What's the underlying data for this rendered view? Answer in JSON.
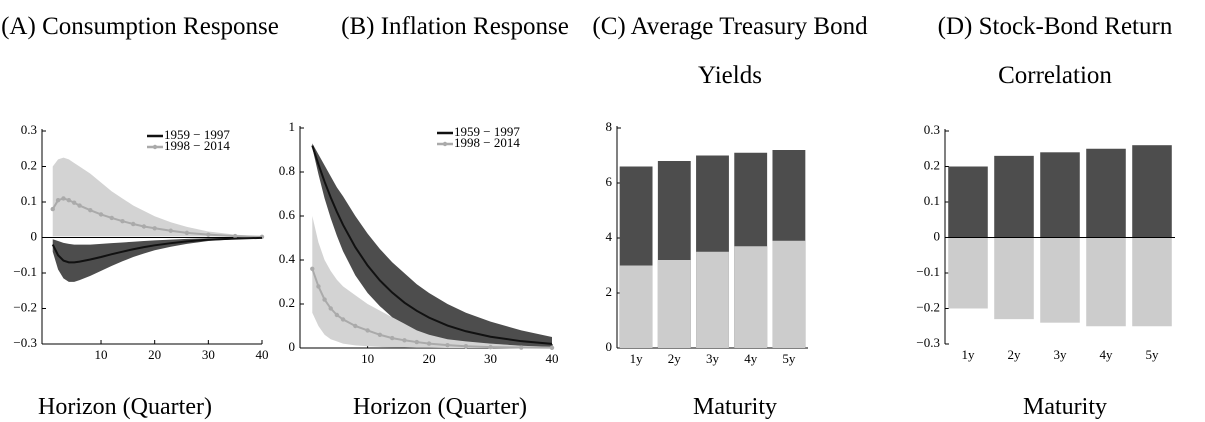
{
  "chart_data": [
    {
      "type": "line",
      "title": "(A) Consumption Response",
      "xlabel": "Horizon (Quarter)",
      "x": [
        1,
        2,
        3,
        4,
        5,
        6,
        8,
        10,
        12,
        14,
        16,
        18,
        20,
        23,
        26,
        30,
        35,
        40
      ],
      "xlim": [
        -1,
        40
      ],
      "xticks": [
        10,
        20,
        30,
        40
      ],
      "ylim": [
        -0.3,
        0.3
      ],
      "yticks": [
        {
          "value": -0.3,
          "label": "−0.3"
        },
        {
          "value": -0.2,
          "label": "−0.2"
        },
        {
          "value": -0.1,
          "label": "−0.1"
        },
        0,
        0.1,
        0.2,
        0.3
      ],
      "zero_line": true,
      "legend": "upper right",
      "series": [
        {
          "name": "1959 − 1997",
          "color": "#111111",
          "band_color": "#4d4d4d",
          "markers": false,
          "values": [
            -0.02,
            -0.05,
            -0.065,
            -0.07,
            -0.07,
            -0.068,
            -0.062,
            -0.055,
            -0.047,
            -0.04,
            -0.033,
            -0.027,
            -0.022,
            -0.016,
            -0.011,
            -0.006,
            -0.003,
            -0.001
          ],
          "lower": [
            -0.04,
            -0.09,
            -0.115,
            -0.125,
            -0.125,
            -0.12,
            -0.108,
            -0.094,
            -0.08,
            -0.067,
            -0.055,
            -0.045,
            -0.036,
            -0.026,
            -0.018,
            -0.01,
            -0.005,
            -0.002
          ],
          "upper": [
            -0.005,
            -0.01,
            -0.015,
            -0.018,
            -0.02,
            -0.02,
            -0.02,
            -0.018,
            -0.016,
            -0.014,
            -0.012,
            -0.01,
            -0.008,
            -0.006,
            -0.004,
            -0.002,
            -0.001,
            0
          ]
        },
        {
          "name": "1998 − 2014",
          "color": "#aaaaaa",
          "band_color": "#d3d3d3",
          "markers": true,
          "values": [
            0.08,
            0.105,
            0.11,
            0.105,
            0.098,
            0.09,
            0.077,
            0.065,
            0.055,
            0.046,
            0.038,
            0.031,
            0.026,
            0.019,
            0.013,
            0.008,
            0.004,
            0.002
          ],
          "lower": [
            0.003,
            0.003,
            0.003,
            0.003,
            0.003,
            0.003,
            0.003,
            0.003,
            0.003,
            0.003,
            0.003,
            0.003,
            0.003,
            0.003,
            0.003,
            0.003,
            0.002,
            0.001
          ],
          "upper": [
            0.2,
            0.22,
            0.225,
            0.22,
            0.21,
            0.2,
            0.18,
            0.155,
            0.13,
            0.11,
            0.09,
            0.075,
            0.06,
            0.043,
            0.03,
            0.017,
            0.008,
            0.003
          ]
        }
      ]
    },
    {
      "type": "line",
      "title": "(B) Inflation Response",
      "xlabel": "Horizon (Quarter)",
      "x": [
        1,
        2,
        3,
        4,
        5,
        6,
        8,
        10,
        12,
        14,
        16,
        18,
        20,
        23,
        26,
        30,
        35,
        40
      ],
      "xlim": [
        -1,
        40
      ],
      "xticks": [
        10,
        20,
        30,
        40
      ],
      "ylim": [
        0,
        1
      ],
      "yticks": [
        0,
        0.2,
        0.4,
        0.6,
        0.8,
        1
      ],
      "zero_line": false,
      "legend": "upper right",
      "series": [
        {
          "name": "1959 − 1997",
          "color": "#111111",
          "band_color": "#4d4d4d",
          "markers": false,
          "values": [
            0.92,
            0.835,
            0.756,
            0.684,
            0.619,
            0.56,
            0.458,
            0.375,
            0.307,
            0.252,
            0.206,
            0.169,
            0.138,
            0.102,
            0.076,
            0.051,
            0.031,
            0.019
          ],
          "lower": [
            0.91,
            0.79,
            0.68,
            0.59,
            0.51,
            0.44,
            0.33,
            0.25,
            0.19,
            0.14,
            0.11,
            0.08,
            0.06,
            0.04,
            0.03,
            0.02,
            0.01,
            0.005
          ],
          "upper": [
            0.93,
            0.88,
            0.83,
            0.78,
            0.73,
            0.69,
            0.6,
            0.52,
            0.45,
            0.39,
            0.34,
            0.29,
            0.25,
            0.2,
            0.16,
            0.12,
            0.08,
            0.05
          ]
        },
        {
          "name": "1998 − 2014",
          "color": "#aaaaaa",
          "band_color": "#d3d3d3",
          "markers": true,
          "values": [
            0.36,
            0.28,
            0.22,
            0.18,
            0.15,
            0.13,
            0.1,
            0.08,
            0.06,
            0.045,
            0.035,
            0.027,
            0.02,
            0.013,
            0.008,
            0.004,
            0.002,
            0.001
          ],
          "lower": [
            0.16,
            0.1,
            0.06,
            0.04,
            0.03,
            0.02,
            0.012,
            0.008,
            0.005,
            0.003,
            0.002,
            0.001,
            0.001,
            0,
            0,
            0,
            0,
            0
          ],
          "upper": [
            0.6,
            0.48,
            0.4,
            0.35,
            0.31,
            0.28,
            0.24,
            0.2,
            0.17,
            0.14,
            0.11,
            0.09,
            0.07,
            0.05,
            0.035,
            0.02,
            0.01,
            0.005
          ]
        }
      ]
    },
    {
      "type": "bar",
      "title": "(C) Average Treasury Bond Yields",
      "xlabel": "Maturity",
      "categories": [
        "1y",
        "2y",
        "3y",
        "4y",
        "5y"
      ],
      "ylim": [
        0,
        8
      ],
      "yticks": [
        0,
        2,
        4,
        6,
        8
      ],
      "zero_line": false,
      "series": [
        {
          "color": "#4d4d4d",
          "values": [
            6.6,
            6.8,
            7.0,
            7.1,
            7.2
          ]
        },
        {
          "color": "#cccccc",
          "values": [
            3.0,
            3.2,
            3.5,
            3.7,
            3.9
          ]
        }
      ]
    },
    {
      "type": "bar",
      "title": "(D) Stock-Bond Return Correlation",
      "xlabel": "Maturity",
      "categories": [
        "1y",
        "2y",
        "3y",
        "4y",
        "5y"
      ],
      "ylim": [
        -0.3,
        0.3
      ],
      "yticks": [
        {
          "value": -0.3,
          "label": "−0.3"
        },
        {
          "value": -0.2,
          "label": "−0.2"
        },
        {
          "value": -0.1,
          "label": "−0.1"
        },
        0,
        0.1,
        0.2,
        0.3
      ],
      "zero_line": true,
      "series": [
        {
          "color": "#4d4d4d",
          "values": [
            0.2,
            0.23,
            0.24,
            0.25,
            0.26
          ]
        },
        {
          "color": "#cccccc",
          "values": [
            -0.2,
            -0.23,
            -0.24,
            -0.25,
            -0.25
          ]
        }
      ]
    }
  ]
}
